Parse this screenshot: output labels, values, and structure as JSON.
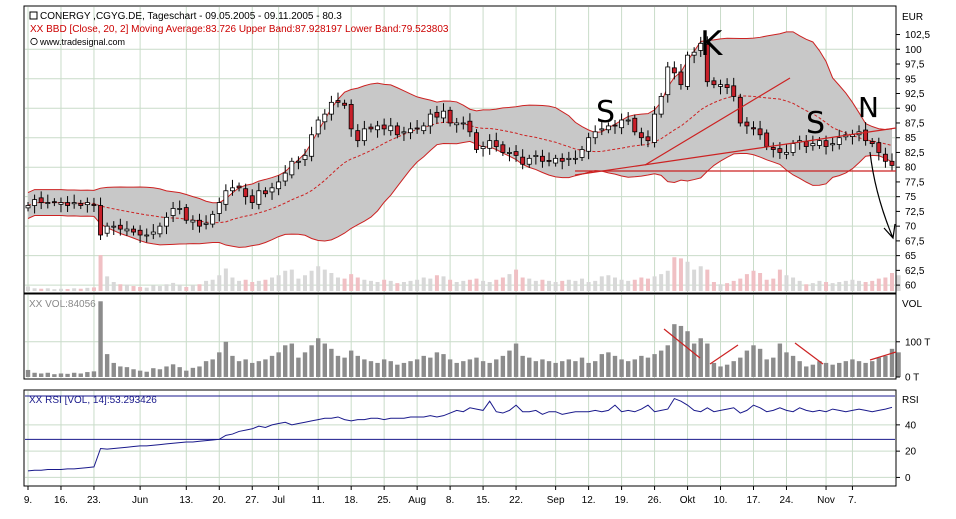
{
  "header": {
    "symbol_line": "CONERGY ,CGYG.DE, Tageschart - 09.05.2005 - 09.11.2005 - 80.3",
    "indicator_line": "XX BBD [Close, 20, 2] Moving Average:83.726 Upper Band:87.928197 Lower Band:79.523803",
    "source_line": "www.tradesignal.com",
    "currency": "EUR"
  },
  "volume_panel": {
    "legend": "XX VOL:84056",
    "label": "VOL",
    "ticks": [
      "100 T",
      "0 T"
    ]
  },
  "rsi_panel": {
    "legend": "XX RSI [VOL, 14]:53.293426",
    "label": "RSI",
    "ticks": [
      "40",
      "20",
      "0"
    ]
  },
  "annotations": {
    "s1": "S",
    "k": "K",
    "s2": "S",
    "n": "N"
  },
  "x_labels": [
    "9.",
    "16.",
    "23.",
    "Jun",
    "13.",
    "20.",
    "27.",
    "Jul",
    "11.",
    "18.",
    "25.",
    "Aug",
    "8.",
    "15.",
    "22.",
    "Sep",
    "12.",
    "19.",
    "26.",
    "Okt",
    "10.",
    "17.",
    "24.",
    "Nov",
    "7."
  ],
  "colors": {
    "up": "#ffffff",
    "down": "#c8202a",
    "band_fill": "#c8c8c8",
    "band_line": "#cc2222",
    "rsi_line": "#1a1a8c",
    "grid": "#c9dcc9",
    "volume_bar": "#8c8c8c"
  },
  "chart_data": [
    {
      "type": "candlestick",
      "title": "CONERGY ,CGYG.DE, Tageschart - 09.05.2005 - 09.11.2005 - 80.3",
      "ylabel": "EUR",
      "ylim": [
        59,
        107
      ],
      "yticks": [
        60,
        62.5,
        65,
        67.5,
        70,
        72.5,
        75,
        77.5,
        80,
        82.5,
        85,
        87.5,
        90,
        92.5,
        95,
        97.5,
        100,
        102.5
      ],
      "x_labels": [
        "9.",
        "16.",
        "23.",
        "Jun",
        "13.",
        "20.",
        "27.",
        "Jul",
        "11.",
        "18.",
        "25.",
        "Aug",
        "8.",
        "15.",
        "22.",
        "Sep",
        "12.",
        "19.",
        "26.",
        "Okt",
        "10.",
        "17.",
        "24.",
        "Nov",
        "7."
      ],
      "close": [
        73.5,
        74.5,
        74,
        74,
        74,
        74,
        73.5,
        74,
        73.5,
        74,
        73.5,
        68.5,
        70,
        70,
        69.5,
        69.5,
        69,
        68.5,
        68.5,
        69,
        70,
        71.5,
        73,
        73,
        71,
        71,
        70,
        70.5,
        72,
        74,
        76,
        76.5,
        76.5,
        75,
        74,
        76,
        75.5,
        76.5,
        77.5,
        79,
        81,
        81,
        82,
        85.5,
        88,
        89,
        91,
        91,
        90.5,
        86.5,
        84.5,
        86.5,
        86.5,
        87,
        86.5,
        87,
        85.5,
        86,
        86.5,
        86.5,
        87,
        89,
        88.5,
        89.5,
        87.5,
        87.5,
        87.5,
        86,
        83,
        83.5,
        84.5,
        83.5,
        82.5,
        82.5,
        82,
        80.5,
        81.5,
        82,
        81,
        81,
        81.5,
        81,
        81.5,
        81.5,
        83,
        85,
        86,
        86.5,
        87,
        87,
        88,
        88,
        86,
        85,
        84.5,
        89,
        92,
        97,
        96,
        94,
        99,
        99.5,
        101,
        94.5,
        94,
        94,
        93.5,
        92,
        87.5,
        87,
        86.5,
        85.5,
        83.5,
        83,
        82.5,
        82.5,
        84,
        84.5,
        83.5,
        84,
        84.5,
        83.5,
        84,
        85,
        85.5,
        85.5,
        86,
        84.5,
        84,
        82.5,
        81,
        80.3
      ],
      "bollinger": {
        "period": 20,
        "stddev": 2,
        "moving_average": 83.726,
        "upper_band": 87.928197,
        "lower_band": 79.523803
      }
    },
    {
      "type": "bar",
      "title": "XX VOL:84056",
      "ylabel": "VOL",
      "ylim": [
        0,
        230
      ],
      "yticks": [
        0,
        100
      ],
      "values": [
        20,
        12,
        10,
        12,
        8,
        10,
        9,
        12,
        10,
        14,
        16,
        215,
        65,
        40,
        30,
        28,
        22,
        18,
        15,
        25,
        22,
        30,
        36,
        28,
        18,
        26,
        30,
        45,
        50,
        70,
        100,
        60,
        45,
        50,
        40,
        45,
        50,
        60,
        70,
        90,
        95,
        55,
        70,
        90,
        110,
        95,
        80,
        60,
        55,
        75,
        60,
        50,
        45,
        40,
        50,
        45,
        35,
        40,
        45,
        50,
        60,
        55,
        70,
        65,
        50,
        40,
        45,
        50,
        55,
        45,
        40,
        50,
        60,
        75,
        95,
        60,
        55,
        45,
        50,
        45,
        40,
        45,
        50,
        45,
        55,
        40,
        45,
        65,
        70,
        60,
        50,
        45,
        50,
        60,
        55,
        65,
        75,
        90,
        150,
        145,
        130,
        95,
        110,
        95,
        40,
        30,
        35,
        45,
        55,
        75,
        90,
        80,
        50,
        55,
        95,
        70,
        60,
        45,
        30,
        35,
        45,
        40,
        35,
        40,
        45,
        50,
        45,
        40,
        45,
        55,
        60,
        80,
        70
      ]
    },
    {
      "type": "line",
      "title": "XX RSI [VOL, 14]:53.293426",
      "ylabel": "RSI",
      "ylim": [
        -5,
        65
      ],
      "yticks": [
        0,
        20,
        40
      ],
      "reference_lines": [
        29,
        62
      ],
      "values": [
        5,
        5.5,
        5.5,
        6,
        6,
        6,
        6.5,
        6.5,
        7,
        7.5,
        8,
        22,
        21.5,
        22,
        22.5,
        23,
        23.5,
        24,
        24,
        24.5,
        25,
        25.5,
        26,
        26.5,
        27,
        27,
        27.5,
        28,
        28.5,
        29,
        32,
        33,
        35,
        36,
        37,
        39,
        38,
        40,
        41,
        42,
        40,
        41,
        42,
        43,
        44,
        45,
        45,
        46,
        44,
        43,
        44,
        44,
        45,
        45,
        44,
        45,
        45,
        45,
        46,
        46,
        46,
        47,
        46,
        47,
        49,
        51,
        50,
        53,
        52,
        51,
        58,
        50,
        49,
        51,
        55,
        50,
        50,
        51,
        48,
        50,
        50,
        48,
        49,
        50,
        50,
        50,
        51,
        50,
        51,
        55,
        50,
        51,
        50,
        52,
        55,
        50,
        51,
        52,
        60,
        58,
        55,
        51,
        50,
        53,
        50,
        51,
        52,
        53,
        49,
        51,
        55,
        53,
        50,
        51,
        53,
        51,
        50,
        53,
        51,
        50,
        51,
        50,
        52,
        51,
        50,
        51,
        52,
        51,
        50,
        51,
        52,
        53.3
      ]
    }
  ]
}
